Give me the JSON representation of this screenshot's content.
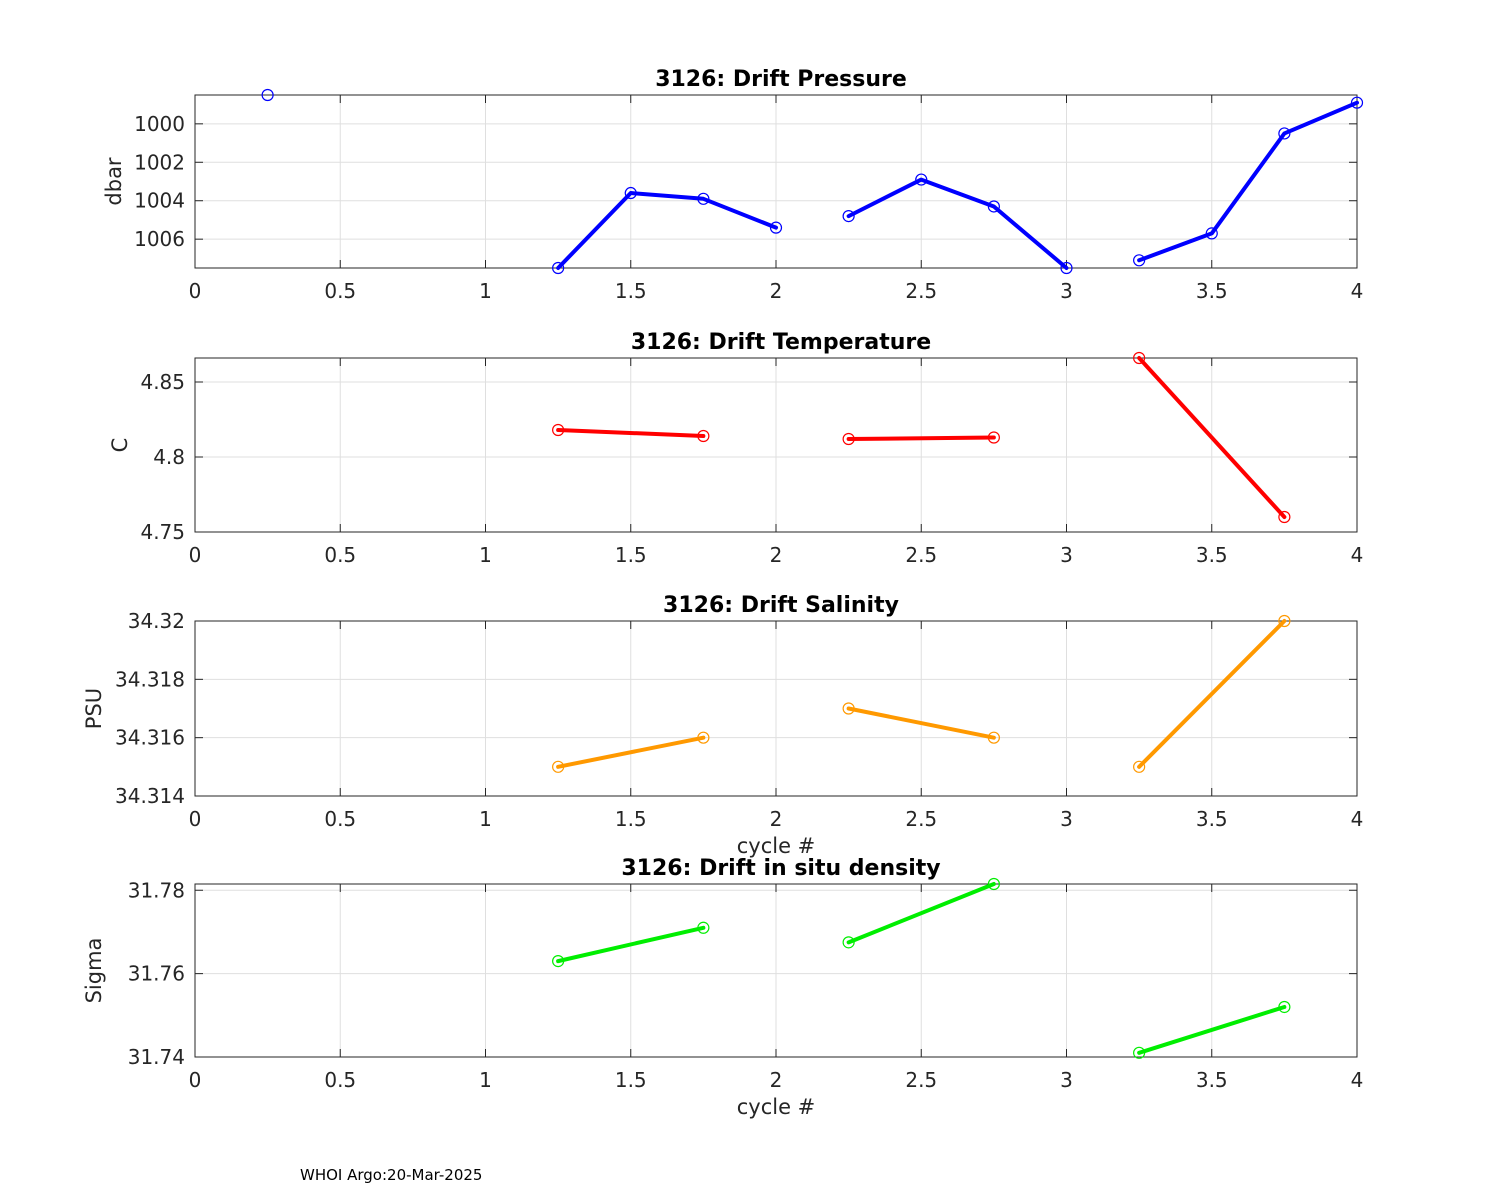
{
  "footer": "WHOI Argo:20-Mar-2025",
  "chart_data": [
    {
      "type": "line",
      "title": "3126: Drift Pressure",
      "xlabel": "",
      "ylabel": "dbar",
      "xlim": [
        0,
        4
      ],
      "ylim": [
        998.5,
        1007.5
      ],
      "y_reversed": true,
      "grid": true,
      "xticks": [
        0,
        0.5,
        1,
        1.5,
        2,
        2.5,
        3,
        3.5,
        4
      ],
      "xtick_labels": [
        "0",
        "0.5",
        "1",
        "1.5",
        "2",
        "2.5",
        "3",
        "3.5",
        "4"
      ],
      "yticks": [
        1000,
        1002,
        1004,
        1006
      ],
      "ytick_labels": [
        "1000",
        "1002",
        "1004",
        "1006"
      ],
      "color": "#0000ff",
      "segments": [
        {
          "x": [
            0.25
          ],
          "y": [
            998.5
          ]
        },
        {
          "x": [
            1.25,
            1.5,
            1.75,
            2.0
          ],
          "y": [
            1007.5,
            1003.6,
            1003.9,
            1005.4
          ]
        },
        {
          "x": [
            2.25,
            2.5,
            2.75,
            3.0
          ],
          "y": [
            1004.8,
            1002.9,
            1004.3,
            1007.5
          ]
        },
        {
          "x": [
            3.25,
            3.5,
            3.75,
            4.0
          ],
          "y": [
            1007.1,
            1005.7,
            1000.5,
            998.9
          ]
        }
      ]
    },
    {
      "type": "line",
      "title": "3126: Drift Temperature",
      "xlabel": "",
      "ylabel": "C",
      "xlim": [
        0,
        4
      ],
      "ylim": [
        4.75,
        4.866
      ],
      "grid": true,
      "xticks": [
        0,
        0.5,
        1,
        1.5,
        2,
        2.5,
        3,
        3.5,
        4
      ],
      "xtick_labels": [
        "0",
        "0.5",
        "1",
        "1.5",
        "2",
        "2.5",
        "3",
        "3.5",
        "4"
      ],
      "yticks": [
        4.75,
        4.8,
        4.85
      ],
      "ytick_labels": [
        "4.75",
        "4.8",
        "4.85"
      ],
      "color": "#ff0000",
      "segments": [
        {
          "x": [
            1.25,
            1.75
          ],
          "y": [
            4.818,
            4.814
          ]
        },
        {
          "x": [
            2.25,
            2.75
          ],
          "y": [
            4.812,
            4.813
          ]
        },
        {
          "x": [
            3.25,
            3.75
          ],
          "y": [
            4.866,
            4.76
          ]
        }
      ]
    },
    {
      "type": "line",
      "title": "3126: Drift Salinity",
      "xlabel": "cycle #",
      "ylabel": "PSU",
      "xlim": [
        0,
        4
      ],
      "ylim": [
        34.314,
        34.32
      ],
      "grid": true,
      "xticks": [
        0,
        0.5,
        1,
        1.5,
        2,
        2.5,
        3,
        3.5,
        4
      ],
      "xtick_labels": [
        "0",
        "0.5",
        "1",
        "1.5",
        "2",
        "2.5",
        "3",
        "3.5",
        "4"
      ],
      "yticks": [
        34.314,
        34.316,
        34.318,
        34.32
      ],
      "ytick_labels": [
        "34.314",
        "34.316",
        "34.318",
        "34.32"
      ],
      "color": "#ff9900",
      "segments": [
        {
          "x": [
            1.25,
            1.75
          ],
          "y": [
            34.315,
            34.316
          ]
        },
        {
          "x": [
            2.25,
            2.75
          ],
          "y": [
            34.317,
            34.316
          ]
        },
        {
          "x": [
            3.25,
            3.75
          ],
          "y": [
            34.315,
            34.32
          ]
        }
      ]
    },
    {
      "type": "line",
      "title": "3126: Drift in situ density",
      "xlabel": "cycle #",
      "ylabel": "Sigma",
      "xlim": [
        0,
        4
      ],
      "ylim": [
        31.74,
        31.7815
      ],
      "grid": true,
      "xticks": [
        0,
        0.5,
        1,
        1.5,
        2,
        2.5,
        3,
        3.5,
        4
      ],
      "xtick_labels": [
        "0",
        "0.5",
        "1",
        "1.5",
        "2",
        "2.5",
        "3",
        "3.5",
        "4"
      ],
      "yticks": [
        31.74,
        31.76,
        31.78
      ],
      "ytick_labels": [
        "31.74",
        "31.76",
        "31.78"
      ],
      "color": "#00ee00",
      "segments": [
        {
          "x": [
            1.25,
            1.75
          ],
          "y": [
            31.763,
            31.771
          ]
        },
        {
          "x": [
            2.25,
            2.75
          ],
          "y": [
            31.7675,
            31.7815
          ]
        },
        {
          "x": [
            3.25,
            3.75
          ],
          "y": [
            31.741,
            31.752
          ]
        }
      ]
    }
  ]
}
